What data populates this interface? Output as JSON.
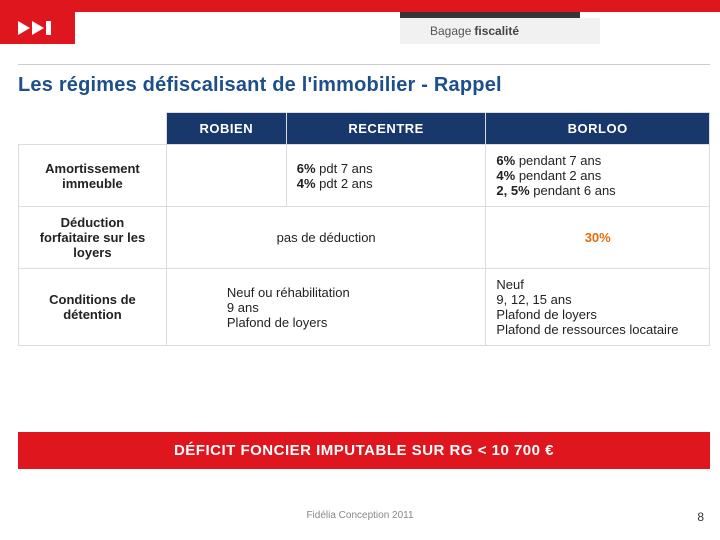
{
  "brand": {
    "color": "#e0161e",
    "header_blue": "#18386b",
    "title_blue": "#1c4f8c"
  },
  "badge": {
    "light": "Bagage",
    "bold": "fiscalité"
  },
  "title": "Les régimes défiscalisant de l'immobilier - Rappel",
  "table": {
    "headers": {
      "col1": "ROBIEN",
      "col2": "RECENTRE",
      "col3": "BORLOO"
    },
    "rows": [
      {
        "label": "Amortissement immeuble",
        "merged12": false,
        "cell1": "",
        "cell2_html": "<strong>6%</strong> pdt 7 ans<br><strong>4%</strong> pdt 2 ans",
        "cell3_html": "<strong>6%</strong> pendant 7 ans<br><strong>4%</strong> pendant 2 ans<br><strong>2, 5%</strong> pendant 6 ans"
      },
      {
        "label": "Déduction forfaitaire sur les loyers",
        "merged12": true,
        "merged_text": "pas de déduction",
        "cell3_html": "<span class=\"orange\">30%</span>",
        "cell3_center": true
      },
      {
        "label": "Conditions de détention",
        "merged12": true,
        "merged_html": "Neuf ou réhabilitation<br>9 ans<br>Plafond de loyers",
        "merged_left": true,
        "cell3_html": "Neuf<br>9, 12, 15 ans<br>Plafond de loyers<br>Plafond de ressources locataire"
      }
    ]
  },
  "footbar": "DÉFICIT FONCIER IMPUTABLE SUR RG < 10 700 €",
  "bottom_credit": "Fidélia Conception 2011",
  "page_number": "8",
  "col_widths": {
    "rowhdr": 148,
    "c1": 120,
    "c2": 200,
    "c3": 224
  }
}
